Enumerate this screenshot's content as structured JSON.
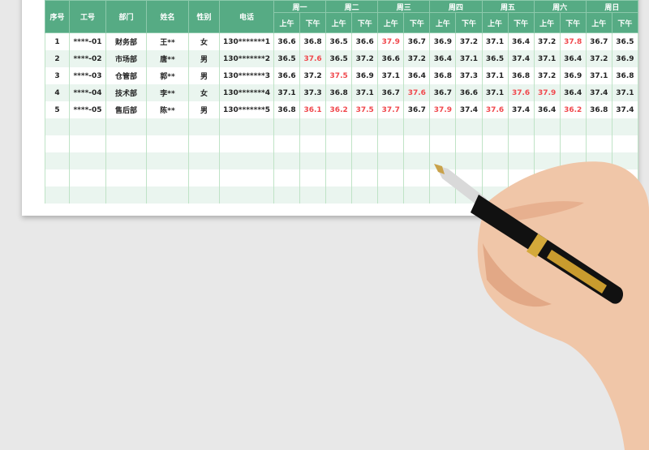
{
  "headers": {
    "seq": "序号",
    "id": "工号",
    "dept": "部门",
    "name": "姓名",
    "gender": "性别",
    "phone": "电话",
    "days": [
      "周一",
      "周二",
      "周三",
      "周四",
      "周五",
      "周六",
      "周日"
    ],
    "am": "上午",
    "pm": "下午"
  },
  "rows": [
    {
      "seq": "1",
      "id": "****-01",
      "dept": "财务部",
      "name": "王**",
      "gender": "女",
      "phone": "130*******1",
      "temps": [
        "36.6",
        "36.8",
        "36.5",
        "36.6",
        "37.9",
        "36.7",
        "36.9",
        "37.2",
        "37.1",
        "36.4",
        "37.2",
        "37.8",
        "36.7",
        "36.5"
      ]
    },
    {
      "seq": "2",
      "id": "****-02",
      "dept": "市场部",
      "name": "唐**",
      "gender": "男",
      "phone": "130*******2",
      "temps": [
        "36.5",
        "37.6",
        "36.5",
        "37.2",
        "36.6",
        "37.2",
        "36.4",
        "37.1",
        "36.5",
        "37.4",
        "37.1",
        "36.4",
        "37.2",
        "36.9"
      ]
    },
    {
      "seq": "3",
      "id": "****-03",
      "dept": "仓管部",
      "name": "郭**",
      "gender": "男",
      "phone": "130*******3",
      "temps": [
        "36.6",
        "37.2",
        "37.5",
        "36.9",
        "37.1",
        "36.4",
        "36.8",
        "37.3",
        "37.1",
        "36.8",
        "37.2",
        "36.9",
        "37.1",
        "36.8"
      ]
    },
    {
      "seq": "4",
      "id": "****-04",
      "dept": "技术部",
      "name": "李**",
      "gender": "女",
      "phone": "130*******4",
      "temps": [
        "37.1",
        "37.3",
        "36.8",
        "37.1",
        "36.7",
        "37.6",
        "36.7",
        "36.6",
        "37.1",
        "37.6",
        "37.9",
        "36.4",
        "37.4",
        "37.1"
      ]
    },
    {
      "seq": "5",
      "id": "****-05",
      "dept": "售后部",
      "name": "陈**",
      "gender": "男",
      "phone": "130*******5",
      "temps": [
        "36.8",
        "36.1",
        "36.2",
        "37.5",
        "37.7",
        "36.7",
        "37.9",
        "37.4",
        "37.6",
        "37.4",
        "36.4",
        "36.2",
        "36.8",
        "37.4"
      ]
    }
  ],
  "empty_rows": 5,
  "colors": {
    "header": "#56ab84",
    "alt_row": "#eaf5ef",
    "abnormal": "#f0484d"
  }
}
